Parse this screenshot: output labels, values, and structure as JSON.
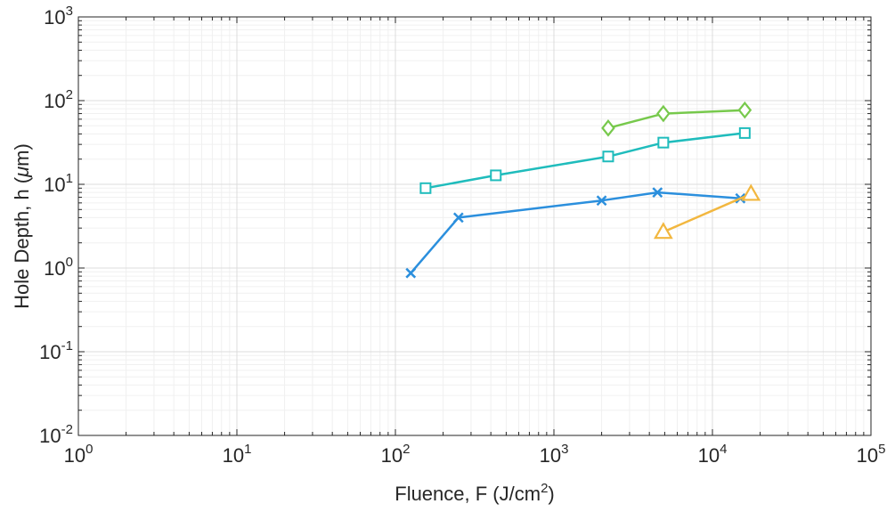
{
  "chart_data": {
    "type": "line",
    "xscale": "log",
    "yscale": "log",
    "xlim": [
      1,
      100000
    ],
    "ylim": [
      0.01,
      1000
    ],
    "grid": true,
    "minor_grid": true,
    "x_ticks": [
      {
        "base": "10",
        "exp": "0",
        "value": 1
      },
      {
        "base": "10",
        "exp": "1",
        "value": 10
      },
      {
        "base": "10",
        "exp": "2",
        "value": 100
      },
      {
        "base": "10",
        "exp": "3",
        "value": 1000
      },
      {
        "base": "10",
        "exp": "4",
        "value": 10000
      },
      {
        "base": "10",
        "exp": "5",
        "value": 100000
      }
    ],
    "y_ticks": [
      {
        "base": "10",
        "exp": "-2",
        "value": 0.01
      },
      {
        "base": "10",
        "exp": "-1",
        "value": 0.1
      },
      {
        "base": "10",
        "exp": "0",
        "value": 1
      },
      {
        "base": "10",
        "exp": "1",
        "value": 10
      },
      {
        "base": "10",
        "exp": "2",
        "value": 100
      },
      {
        "base": "10",
        "exp": "3",
        "value": 1000
      }
    ],
    "xlabel": {
      "text": "Fluence, F (J/cm",
      "sup": "2",
      "tail": ")"
    },
    "ylabel": {
      "text": "Hole Depth, h (",
      "mu": "μ",
      "tail": "m)"
    },
    "series": [
      {
        "marker": "x",
        "color": "#2b8fdd",
        "x": [
          125,
          250,
          2000,
          4500,
          15000
        ],
        "y": [
          0.87,
          4.0,
          6.4,
          8.0,
          6.8
        ]
      },
      {
        "marker": "square",
        "color": "#1fbcbc",
        "x": [
          155,
          430,
          2200,
          4900,
          16000
        ],
        "y": [
          9.0,
          12.8,
          21.5,
          31.5,
          41.0
        ]
      },
      {
        "marker": "diamond",
        "color": "#77c94c",
        "x": [
          2200,
          4900,
          16000
        ],
        "y": [
          47.0,
          70.0,
          77.0
        ]
      },
      {
        "marker": "triangle",
        "color": "#f2b73f",
        "x": [
          4900,
          17500
        ],
        "y": [
          2.7,
          7.7
        ]
      }
    ]
  }
}
